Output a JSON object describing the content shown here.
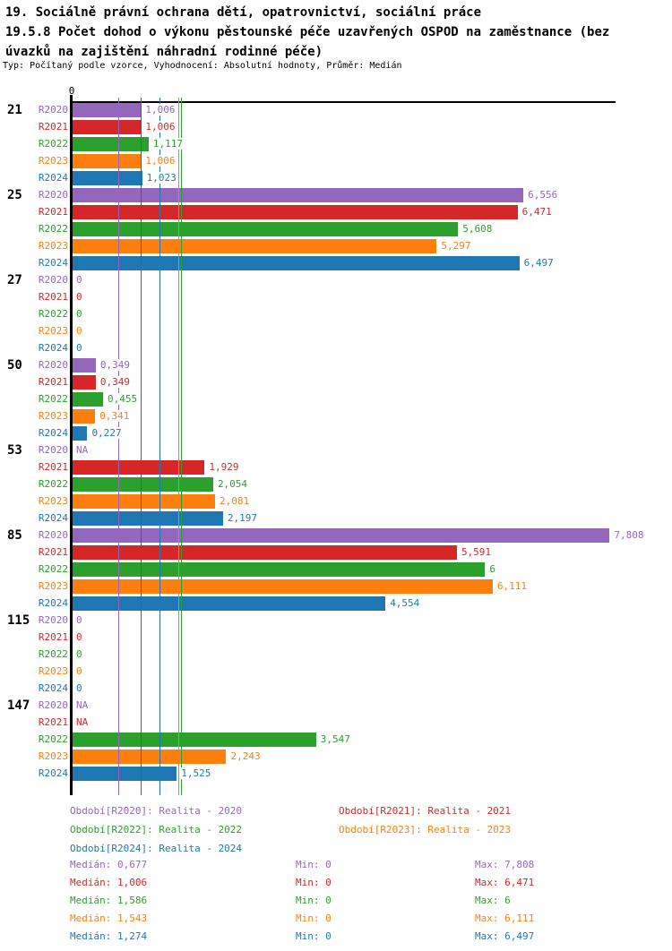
{
  "title": {
    "lines": [
      "19. Sociálně právní ochrana dětí, opatrovnictví, sociální práce",
      "19.5.8 Počet dohod o výkonu pěstounské péče uzavřených OSPOD na zaměstnance (bez",
      "úvazků na zajištění náhradní rodinné péče)"
    ],
    "subtitle": "Typ: Počítaný podle vzorce, Vyhodnocení: Absolutní hodnoty, Průměr: Medián"
  },
  "chart_data": {
    "type": "bar",
    "orientation": "horizontal",
    "grid": false,
    "axis": {
      "zero_label": "0",
      "xlim": [
        0,
        8.5
      ]
    },
    "categories": [
      "21",
      "25",
      "27",
      "50",
      "53",
      "85",
      "115",
      "147"
    ],
    "na_text": "NA",
    "series": [
      {
        "name": "R2020",
        "color": "#9467bd",
        "legend": "Období[R2020]: Realita - 2020",
        "median": 0.677,
        "median_label": "Medián: 0,677",
        "min_label": "Min: 0",
        "max_label": "Max: 7,808",
        "values": [
          1.006,
          6.556,
          0,
          0.349,
          null,
          7.808,
          0,
          null
        ],
        "labels": [
          "1,006",
          "6,556",
          "0",
          "0,349",
          "NA",
          "7,808",
          "0",
          "NA"
        ]
      },
      {
        "name": "R2021",
        "color": "#d62728",
        "legend": "Období[R2021]: Realita - 2021",
        "median": 1.006,
        "median_label": "Medián: 1,006",
        "min_label": "Min: 0",
        "max_label": "Max: 6,471",
        "values": [
          1.006,
          6.471,
          0,
          0.349,
          1.929,
          5.591,
          0,
          null
        ],
        "labels": [
          "1,006",
          "6,471",
          "0",
          "0,349",
          "1,929",
          "5,591",
          "0",
          "NA"
        ]
      },
      {
        "name": "R2022",
        "color": "#2ca02c",
        "legend": "Období[R2022]: Realita - 2022",
        "median": 1.586,
        "median_label": "Medián: 1,586",
        "min_label": "Min: 0",
        "max_label": "Max: 6",
        "values": [
          1.117,
          5.608,
          0,
          0.455,
          2.054,
          6,
          0,
          3.547
        ],
        "labels": [
          "1,117",
          "5,608",
          "0",
          "0,455",
          "2,054",
          "6",
          "0",
          "3,547"
        ]
      },
      {
        "name": "R2023",
        "color": "#ff7f0e",
        "legend": "Období[R2023]: Realita - 2023",
        "median": 1.543,
        "median_label": "Medián: 1,543",
        "min_label": "Min: 0",
        "max_label": "Max: 6,111",
        "values": [
          1.006,
          5.297,
          0,
          0.341,
          2.081,
          6.111,
          0,
          2.243
        ],
        "labels": [
          "1,006",
          "5,297",
          "0",
          "0,341",
          "2,081",
          "6,111",
          "0",
          "2,243"
        ]
      },
      {
        "name": "R2024",
        "color": "#1f77b4",
        "legend": "Období[R2024]: Realita - 2024",
        "median": 1.274,
        "median_label": "Medián: 1,274",
        "min_label": "Min: 0",
        "max_label": "Max: 6,497",
        "values": [
          1.023,
          6.497,
          0,
          0.227,
          2.197,
          4.554,
          0,
          1.525
        ],
        "labels": [
          "1,023",
          "6,497",
          "0",
          "0,227",
          "2,197",
          "4,554",
          "0",
          "1,525"
        ]
      }
    ]
  }
}
